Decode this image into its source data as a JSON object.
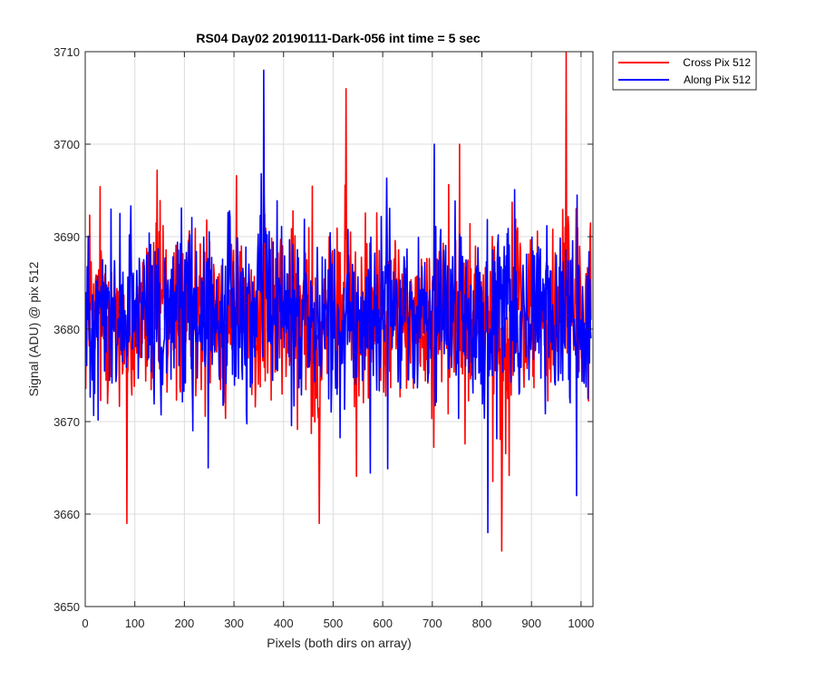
{
  "chart_data": {
    "type": "line",
    "title": "RS04 Day02 20190111-Dark-056 int time = 5 sec",
    "xlabel": "Pixels (both dirs on array)",
    "ylabel": "Signal (ADU) @ pix 512",
    "xlim": [
      0,
      1024
    ],
    "ylim": [
      3650,
      3710
    ],
    "xticks": [
      0,
      100,
      200,
      300,
      400,
      500,
      600,
      700,
      800,
      900,
      1000
    ],
    "yticks": [
      3650,
      3660,
      3670,
      3680,
      3690,
      3700,
      3710
    ],
    "grid": true,
    "legend_position": "outside-top-right",
    "series": [
      {
        "name": "Cross Pix 512",
        "color": "#ff0000",
        "summary": {
          "mean": 3681.5,
          "min": 3656,
          "max": 3710,
          "n_points": 1024
        },
        "x": [
          0,
          20,
          40,
          60,
          80,
          84,
          100,
          120,
          140,
          160,
          180,
          200,
          220,
          240,
          260,
          280,
          300,
          320,
          340,
          360,
          380,
          400,
          420,
          440,
          460,
          472,
          480,
          500,
          520,
          526,
          540,
          560,
          580,
          600,
          620,
          640,
          660,
          680,
          700,
          720,
          740,
          760,
          780,
          800,
          820,
          840,
          860,
          880,
          900,
          920,
          940,
          960,
          970,
          980,
          1000,
          1020
        ],
        "values": [
          3684,
          3678,
          3686,
          3682,
          3680,
          3659,
          3683,
          3679,
          3685,
          3681,
          3678,
          3684,
          3680,
          3682,
          3686,
          3679,
          3683,
          3681,
          3678,
          3684,
          3682,
          3680,
          3679,
          3685,
          3681,
          3659,
          3683,
          3680,
          3682,
          3706,
          3681,
          3679,
          3684,
          3682,
          3680,
          3683,
          3681,
          3678,
          3685,
          3682,
          3680,
          3683,
          3681,
          3679,
          3684,
          3656,
          3682,
          3680,
          3683,
          3681,
          3679,
          3684,
          3710,
          3682,
          3680,
          3681
        ]
      },
      {
        "name": "Along Pix 512",
        "color": "#0000ff",
        "summary": {
          "mean": 3681.5,
          "min": 3658,
          "max": 3708,
          "n_points": 1024
        },
        "x": [
          0,
          20,
          40,
          60,
          80,
          100,
          120,
          140,
          160,
          180,
          200,
          220,
          240,
          260,
          280,
          300,
          320,
          340,
          360,
          380,
          400,
          420,
          440,
          460,
          480,
          500,
          520,
          540,
          560,
          580,
          600,
          620,
          640,
          660,
          680,
          700,
          720,
          740,
          760,
          780,
          800,
          812,
          820,
          840,
          860,
          880,
          900,
          920,
          940,
          960,
          980,
          1000,
          1020
        ],
        "values": [
          3681,
          3683,
          3679,
          3684,
          3682,
          3680,
          3683,
          3681,
          3679,
          3684,
          3682,
          3680,
          3683,
          3681,
          3679,
          3684,
          3682,
          3680,
          3708,
          3681,
          3683,
          3679,
          3684,
          3682,
          3680,
          3683,
          3681,
          3679,
          3684,
          3682,
          3680,
          3683,
          3681,
          3679,
          3684,
          3682,
          3680,
          3683,
          3681,
          3679,
          3684,
          3658,
          3682,
          3680,
          3683,
          3681,
          3679,
          3684,
          3682,
          3680,
          3683,
          3681,
          3679
        ]
      }
    ]
  }
}
